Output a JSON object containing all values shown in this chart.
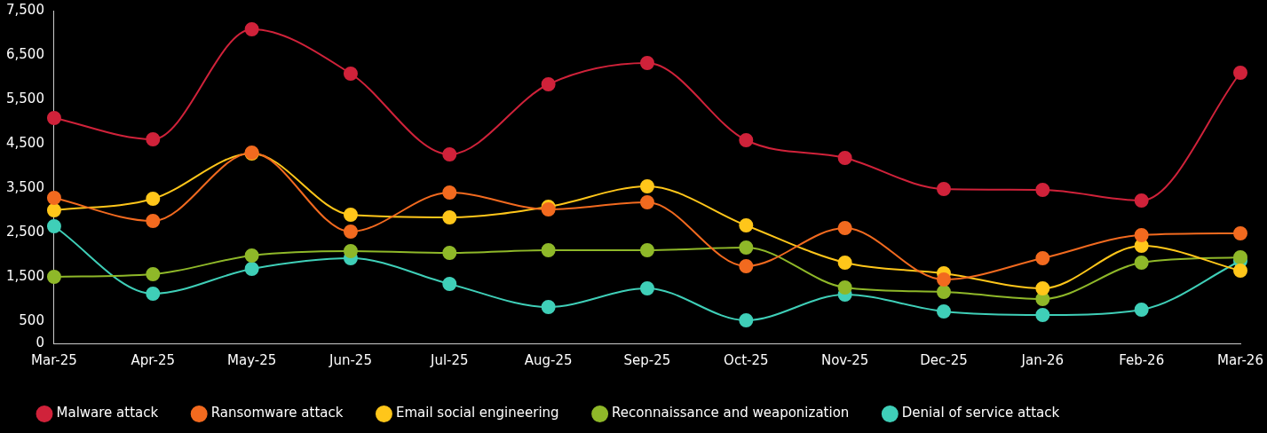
{
  "chart_data": {
    "type": "line",
    "categories": [
      "Mar-25",
      "Apr-25",
      "May-25",
      "Jun-25",
      "Jul-25",
      "Aug-25",
      "Sep-25",
      "Oct-25",
      "Nov-25",
      "Dec-25",
      "Jan-26",
      "Feb-26",
      "Mar-26"
    ],
    "series": [
      {
        "name": "Malware attack",
        "color": "#d0223a",
        "values": [
          5080,
          4600,
          7080,
          6080,
          4260,
          5840,
          6320,
          4580,
          4180,
          3480,
          3460,
          3220,
          6100
        ]
      },
      {
        "name": "Ransomware attack",
        "color": "#f26a1f",
        "values": [
          3280,
          2760,
          4300,
          2520,
          3400,
          3020,
          3180,
          1740,
          2600,
          1440,
          1920,
          2440,
          2480
        ]
      },
      {
        "name": "Email social engineering",
        "color": "#ffc61a",
        "values": [
          3000,
          3260,
          4280,
          2900,
          2840,
          3080,
          3540,
          2660,
          1820,
          1580,
          1240,
          2200,
          1640
        ]
      },
      {
        "name": "Reconnaissance and weaponization",
        "color": "#8fb829",
        "values": [
          1500,
          1560,
          1980,
          2080,
          2040,
          2100,
          2100,
          2160,
          1260,
          1160,
          1000,
          1820,
          1940
        ]
      },
      {
        "name": "Denial of service attack",
        "color": "#3fcfb8",
        "values": [
          2640,
          1120,
          1680,
          1920,
          1340,
          820,
          1240,
          520,
          1100,
          720,
          640,
          760,
          1860
        ]
      }
    ],
    "ylim": [
      0,
      7500
    ],
    "yticks": [
      0,
      500,
      {
        "value": 1500,
        "label": "1,500"
      },
      {
        "value": 2500,
        "label": "2,500"
      },
      {
        "value": 3500,
        "label": "3,500"
      },
      {
        "value": 4500,
        "label": "4,500"
      },
      {
        "value": 5500,
        "label": "5,500"
      },
      {
        "value": 6500,
        "label": "6,500"
      },
      {
        "value": 7500,
        "label": "7,500"
      }
    ],
    "grid": false,
    "legend": "bottom",
    "marker": "circle",
    "line_style": "solid"
  }
}
